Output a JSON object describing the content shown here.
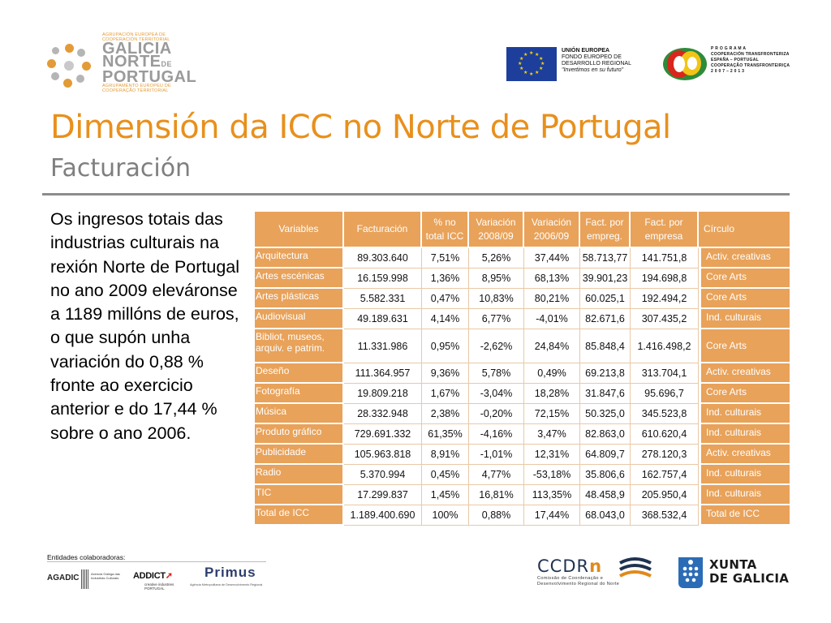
{
  "header": {
    "galicia_logo": {
      "top_small": [
        "AGRUPACIÓN EUROPEA DE",
        "COOPERACIÓN TERRITORIAL"
      ],
      "line1": "GALICIA",
      "line2": "NORTE",
      "line2_suffix": "DE",
      "line3": "PORTUGAL",
      "bottom_small": [
        "AGRUPAMENTO EUROPEU DE",
        "COOPERAÇÃO TERRITORIAL"
      ]
    },
    "eu_logo": {
      "line1": "UNIÓN EUROPEA",
      "line2": "FONDO EUROPEO DE",
      "line3": "DESARROLLO REGIONAL",
      "slogan": "\"Invertimos en su futuro\""
    },
    "poctep_logo": {
      "lines": [
        "P R O G R A M A",
        "COOPERACIÓN TRANSFRONTERIZA",
        "ESPAÑA – PORTUGAL",
        "COOPERAÇÃO TRANSFRONTEIRIÇA",
        "2 0 0 7 – 2 0 1 3"
      ]
    }
  },
  "title": "Dimensión da ICC no Norte de Portugal",
  "subtitle": "Facturación",
  "body_text": "Os ingresos totais das industrias culturais na rexión Norte de Portugal no ano 2009 elevárонse a 1189 millóns de euros, o que supón unha variación do  0,88 % fronte ao exercicio anterior e do 17,44 % sobre o ano 2006.",
  "table": {
    "headers": [
      "Variables",
      "Facturación",
      "% no total ICC",
      "Variación 2008/09",
      "Variación 2006/09",
      "Fact. por empreg.",
      "Fact. por empresa",
      "Círculo"
    ],
    "rows": [
      [
        "Arquitectura",
        "89.303.640",
        "7,51%",
        "5,26%",
        "37,44%",
        "58.713,77",
        "141.751,8",
        "Activ. creativas"
      ],
      [
        "Artes escénicas",
        "16.159.998",
        "1,36%",
        "8,95%",
        "68,13%",
        "39.901,23",
        "194.698,8",
        "Core Arts"
      ],
      [
        "Artes plásticas",
        "5.582.331",
        "0,47%",
        "10,83%",
        "80,21%",
        "60.025,1",
        "192.494,2",
        "Core Arts"
      ],
      [
        "Audiovisual",
        "49.189.631",
        "4,14%",
        "6,77%",
        "-4,01%",
        "82.671,6",
        "307.435,2",
        "Ind. culturais"
      ],
      [
        "Bibliot, museos, arquiv. e patrim.",
        "11.331.986",
        "0,95%",
        "-2,62%",
        "24,84%",
        "85.848,4",
        "1.416.498,2",
        "Core Arts"
      ],
      [
        "Deseño",
        "111.364.957",
        "9,36%",
        "5,78%",
        "0,49%",
        "69.213,8",
        "313.704,1",
        "Activ. creativas"
      ],
      [
        "Fotografía",
        "19.809.218",
        "1,67%",
        "-3,04%",
        "18,28%",
        "31.847,6",
        "95.696,7",
        "Core Arts"
      ],
      [
        "Música",
        "28.332.948",
        "2,38%",
        "-0,20%",
        "72,15%",
        "50.325,0",
        "345.523,8",
        "Ind. culturais"
      ],
      [
        "Produto gráfico",
        "729.691.332",
        "61,35%",
        "-4,16%",
        "3,47%",
        "82.863,0",
        "610.620,4",
        "Ind. culturais"
      ],
      [
        "Publicidade",
        "105.963.818",
        "8,91%",
        "-1,01%",
        "12,31%",
        "64.809,7",
        "278.120,3",
        "Activ. creativas"
      ],
      [
        "Radio",
        "5.370.994",
        "0,45%",
        "4,77%",
        "-53,18%",
        "35.806,6",
        "162.757,4",
        "Ind. culturais"
      ],
      [
        "TIC",
        "17.299.837",
        "1,45%",
        "16,81%",
        "113,35%",
        "48.458,9",
        "205.950,4",
        "Ind. culturais"
      ],
      [
        "Total de ICC",
        "1.189.400.690",
        "100%",
        "0,88%",
        "17,44%",
        "68.043,0",
        "368.532,4",
        "Total de ICC"
      ]
    ]
  },
  "footer": {
    "label": "Entidades colaboradoras:",
    "agadic": {
      "name": "AGADIC",
      "small": "Axencia Galega das Industrias Culturais"
    },
    "addict": {
      "name": "ADDICT",
      "small": "creative industries PORTUGAL"
    },
    "primus": {
      "name": "Primus",
      "small": "Agência Metropolitana de Desenvolvimento Regional"
    },
    "ccdrn": {
      "name": "CCDR",
      "name_n": "n",
      "small1": "Comissão de Coordenação e",
      "small2": "Desenvolvimento Regional do Norte"
    },
    "xunta": {
      "line1": "XUNTA",
      "line2": "DE GALICIA"
    }
  },
  "colors": {
    "title": "#e8901c",
    "table_header": "#e8a25a",
    "subtitle": "#7f7f7f"
  }
}
